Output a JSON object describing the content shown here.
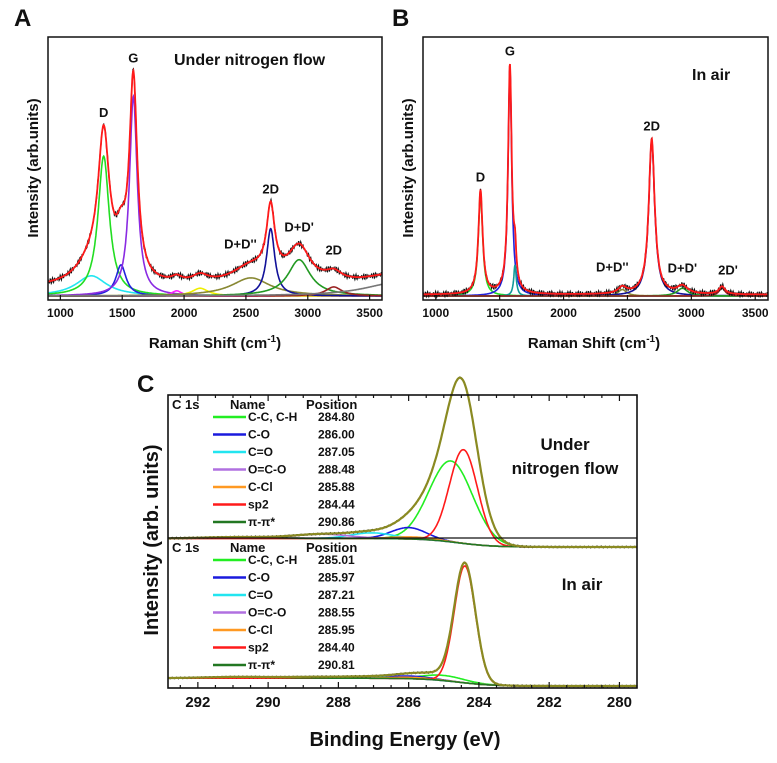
{
  "chart_data": [
    {
      "panel": "A",
      "type": "line",
      "title": "Under nitrogen flow",
      "xlabel": "Raman Shift (cm-1)",
      "xlabel_main": "Raman Shift (cm",
      "xlabel_sup": "-1",
      "xlabel_end": ")",
      "ylabel": "Intensity (arb.units)",
      "xlim": [
        900,
        3600
      ],
      "xticks": [
        1000,
        1500,
        2000,
        2500,
        3000,
        3500
      ],
      "peak_labels": [
        {
          "text": "D",
          "x": 1350
        },
        {
          "text": "G",
          "x": 1590
        },
        {
          "text": "2D",
          "x": 2700
        },
        {
          "text": "D+D''",
          "x": 2520
        },
        {
          "text": "D+D'",
          "x": 2930
        },
        {
          "text": "2D",
          "x": 3210
        }
      ],
      "components": [
        {
          "center": 1250,
          "height": 0.078,
          "width": 150,
          "color": "#22e5f0"
        },
        {
          "center": 1350,
          "height": 0.54,
          "width": 55,
          "color": "#22dd22"
        },
        {
          "center": 1490,
          "height": 0.12,
          "width": 50,
          "color": "#2222dd"
        },
        {
          "center": 1590,
          "height": 0.77,
          "width": 38,
          "color": "#8a2be2"
        },
        {
          "center": 1940,
          "height": 0.02,
          "width": 50,
          "color": "#ff22ff"
        },
        {
          "center": 2130,
          "height": 0.03,
          "width": 80,
          "color": "#eeee00"
        },
        {
          "center": 2540,
          "height": 0.07,
          "width": 190,
          "color": "#888833"
        },
        {
          "center": 2700,
          "height": 0.26,
          "width": 40,
          "color": "#111199"
        },
        {
          "center": 2930,
          "height": 0.14,
          "width": 110,
          "color": "#229922"
        },
        {
          "center": 3210,
          "height": 0.035,
          "width": 80,
          "color": "#992222"
        },
        {
          "center": 3700,
          "height": 0.05,
          "width": 300,
          "color": "#777777"
        }
      ],
      "fit_color": "#ff1a1a"
    },
    {
      "panel": "B",
      "type": "line",
      "title": "In air",
      "xlabel": "Raman Shift (cm-1)",
      "xlabel_main": "Raman Shift (cm",
      "xlabel_sup": "-1",
      "xlabel_end": ")",
      "ylabel": "Intensity (arb.units)",
      "xlim": [
        900,
        3600
      ],
      "xticks": [
        1000,
        1500,
        2000,
        2500,
        3000,
        3500
      ],
      "peak_labels": [
        {
          "text": "D",
          "x": 1350
        },
        {
          "text": "G",
          "x": 1580
        },
        {
          "text": "2D",
          "x": 2690
        },
        {
          "text": "D+D''",
          "x": 2460
        },
        {
          "text": "D+D'",
          "x": 2930
        },
        {
          "text": "2D'",
          "x": 3240
        }
      ],
      "components": [
        {
          "center": 1350,
          "height": 0.4,
          "width": 20,
          "color": "#22dd22"
        },
        {
          "center": 1580,
          "height": 0.88,
          "width": 17,
          "color": "#2222dd"
        },
        {
          "center": 1620,
          "height": 0.12,
          "width": 12,
          "color": "#119999"
        },
        {
          "center": 2460,
          "height": 0.025,
          "width": 40,
          "color": "#888833"
        },
        {
          "center": 2690,
          "height": 0.6,
          "width": 28,
          "color": "#111199"
        },
        {
          "center": 2930,
          "height": 0.03,
          "width": 50,
          "color": "#229922"
        },
        {
          "center": 3240,
          "height": 0.03,
          "width": 30,
          "color": "#992222"
        }
      ],
      "fit_color": "#ff1a1a"
    },
    {
      "panel": "C",
      "type": "line",
      "xlabel": "Binding Energy (eV)",
      "ylabel": "Intensity (arb. units)",
      "xlim": [
        292.85,
        279.5
      ],
      "xticks": [
        292,
        290,
        288,
        286,
        284,
        282,
        280
      ],
      "subplots": [
        {
          "title_lines": [
            "Under",
            "nitrogen flow"
          ],
          "legend_title": "C 1s",
          "legend_headers": [
            "Name",
            "Position"
          ],
          "series": [
            {
              "name": "C-C, C-H",
              "position": "284.80",
              "color": "#22ee22",
              "center": 284.8,
              "height": 0.57,
              "sigma": 0.62
            },
            {
              "name": "C-O",
              "position": "286.00",
              "color": "#1a1add",
              "center": 286.0,
              "height": 0.08,
              "sigma": 0.5
            },
            {
              "name": "C=O",
              "position": "287.05",
              "color": "#22e5f0",
              "center": 287.05,
              "height": 0.04,
              "sigma": 0.6
            },
            {
              "name": "O=C-O",
              "position": "288.48",
              "color": "#b070e0",
              "center": 288.48,
              "height": 0.03,
              "sigma": 0.8
            },
            {
              "name": "C-Cl",
              "position": "285.88",
              "color": "#ff9922",
              "center": 285.88,
              "height": 0.015,
              "sigma": 0.6
            },
            {
              "name": "sp2",
              "position": "284.44",
              "color": "#ff1a1a",
              "center": 284.44,
              "height": 0.66,
              "sigma": 0.4
            },
            {
              "name": "π-π*",
              "position": "290.86",
              "color": "#227722",
              "center": 290.86,
              "height": 0.01,
              "sigma": 1.0
            }
          ]
        },
        {
          "title_lines": [
            "In air"
          ],
          "legend_title": "C 1s",
          "legend_headers": [
            "Name",
            "Position"
          ],
          "series": [
            {
              "name": "C-C, C-H",
              "position": "285.01",
              "color": "#22ee22",
              "center": 285.01,
              "height": 0.04,
              "sigma": 0.6
            },
            {
              "name": "C-O",
              "position": "285.97",
              "color": "#1a1add",
              "center": 285.97,
              "height": 0.02,
              "sigma": 0.6
            },
            {
              "name": "C=O",
              "position": "287.21",
              "color": "#22e5f0",
              "center": 287.21,
              "height": 0.01,
              "sigma": 0.6
            },
            {
              "name": "O=C-O",
              "position": "288.55",
              "color": "#b070e0",
              "center": 288.55,
              "height": 0.01,
              "sigma": 0.8
            },
            {
              "name": "C-Cl",
              "position": "285.95",
              "color": "#ff9922",
              "center": 285.95,
              "height": 0.01,
              "sigma": 0.6
            },
            {
              "name": "sp2",
              "position": "284.40",
              "color": "#ff1a1a",
              "center": 284.4,
              "height": 0.9,
              "sigma": 0.3
            },
            {
              "name": "π-π*",
              "position": "290.81",
              "color": "#227722",
              "center": 290.81,
              "height": 0.01,
              "sigma": 1.0
            }
          ]
        }
      ],
      "envelope_color": "#8a8a22"
    }
  ],
  "panel_letters": [
    "A",
    "B",
    "C"
  ]
}
